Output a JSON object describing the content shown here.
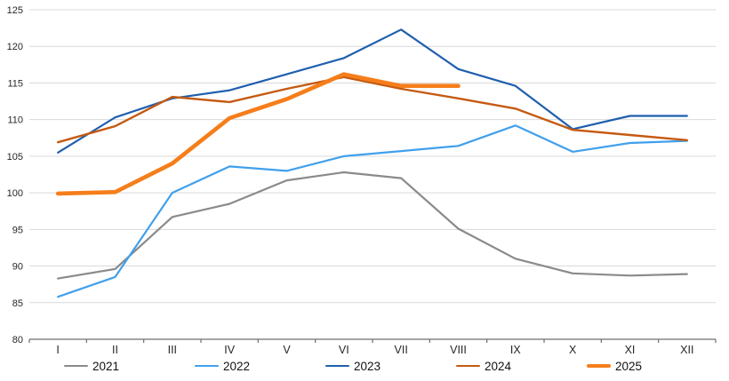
{
  "chart_data": {
    "type": "line",
    "title": "",
    "xlabel": "",
    "ylabel": "",
    "x_categories": [
      "I",
      "II",
      "III",
      "IV",
      "V",
      "VI",
      "VII",
      "VIII",
      "IX",
      "X",
      "XI",
      "XII"
    ],
    "ylim": [
      80,
      125
    ],
    "y_ticks": [
      80,
      85,
      90,
      95,
      100,
      105,
      110,
      115,
      120,
      125
    ],
    "grid": "horizontal-only",
    "legend_position": "bottom",
    "series": [
      {
        "name": "2021",
        "color": "#8A8A8A",
        "line_width": 2.2,
        "values": [
          88.3,
          89.6,
          96.7,
          98.5,
          101.7,
          102.8,
          102.0,
          95.1,
          91.0,
          89.0,
          88.7,
          88.9
        ]
      },
      {
        "name": "2022",
        "color": "#41A0EC",
        "line_width": 2.2,
        "values": [
          85.8,
          88.5,
          100.0,
          103.6,
          103.0,
          105.0,
          105.7,
          106.4,
          109.2,
          105.6,
          106.8,
          107.1
        ]
      },
      {
        "name": "2023",
        "color": "#1F5FAD",
        "line_width": 2.2,
        "values": [
          105.5,
          110.3,
          112.9,
          114.0,
          116.2,
          118.4,
          122.3,
          116.9,
          114.6,
          108.7,
          110.5,
          110.5
        ]
      },
      {
        "name": "2024",
        "color": "#C55A11",
        "line_width": 2.4,
        "values": [
          106.9,
          109.1,
          113.1,
          112.4,
          114.2,
          115.8,
          114.2,
          112.9,
          111.5,
          108.6,
          107.9,
          107.2
        ]
      },
      {
        "name": "2025",
        "color": "#F57E1B",
        "line_width": 4.6,
        "values": [
          99.9,
          100.1,
          104.0,
          110.2,
          112.8,
          116.2,
          114.6,
          114.6
        ]
      }
    ],
    "style": {
      "gridline_color": "#D9D9D9",
      "axis_color": "#6E6E6E",
      "tick_label_color": "#262626",
      "background": "#FFFFFF"
    }
  }
}
